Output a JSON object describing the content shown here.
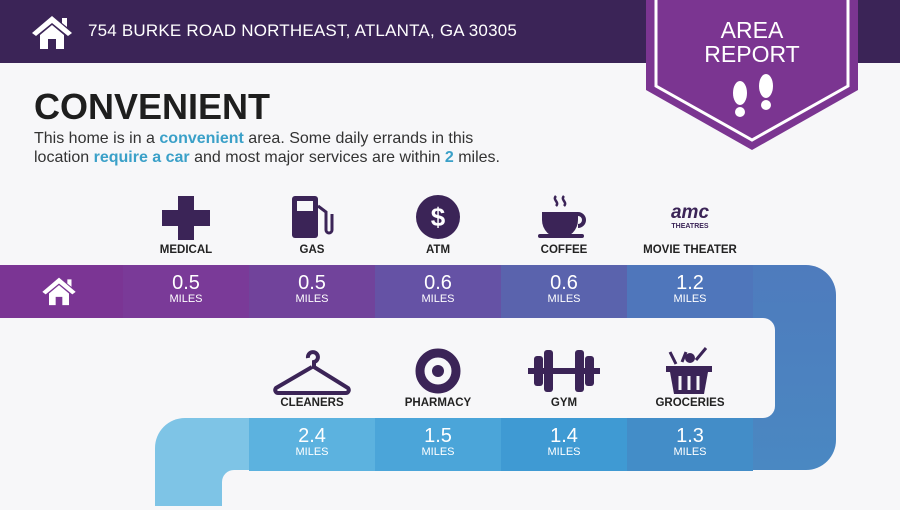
{
  "header": {
    "address": "754 BURKE ROAD NORTHEAST, ATLANTA, GA 30305",
    "home_icon": "home-icon"
  },
  "badge": {
    "line1": "AREA",
    "line2": "REPORT",
    "icon": "footprints-icon"
  },
  "title": "CONVENIENT",
  "description": {
    "p1": "This home is in a ",
    "h1": "convenient",
    "p2": " area. Some daily errands in this",
    "p3": "location ",
    "h2": "require a car",
    "p4": " and most major services are within ",
    "h3": "2",
    "p5": " miles."
  },
  "row1": [
    {
      "label": "MEDICAL",
      "value": "0.5",
      "unit": "MILES",
      "color": "#7a3a98"
    },
    {
      "label": "GAS",
      "value": "0.5",
      "unit": "MILES",
      "color": "#71439b"
    },
    {
      "label": "ATM",
      "value": "0.6",
      "unit": "MILES",
      "color": "#6552a5"
    },
    {
      "label": "COFFEE",
      "value": "0.6",
      "unit": "MILES",
      "color": "#5a63ad"
    },
    {
      "label": "MOVIE THEATER",
      "value": "1.2",
      "unit": "MILES",
      "color": "#4f76bb"
    }
  ],
  "row2": [
    {
      "label": "CLEANERS",
      "value": "2.4",
      "unit": "MILES",
      "color": "#5cb2df"
    },
    {
      "label": "PHARMACY",
      "value": "1.5",
      "unit": "MILES",
      "color": "#4ba5d9"
    },
    {
      "label": "GYM",
      "value": "1.4",
      "unit": "MILES",
      "color": "#3f9ad3"
    },
    {
      "label": "GROCERIES",
      "value": "1.3",
      "unit": "MILES",
      "color": "#438dc8"
    }
  ],
  "amc_logo": "amc",
  "amc_sub": "THEATRES",
  "colors": {
    "header": "#3b2457",
    "badge": "#7b3591",
    "accent": "#3aa0c8",
    "icon": "#3b2457"
  }
}
